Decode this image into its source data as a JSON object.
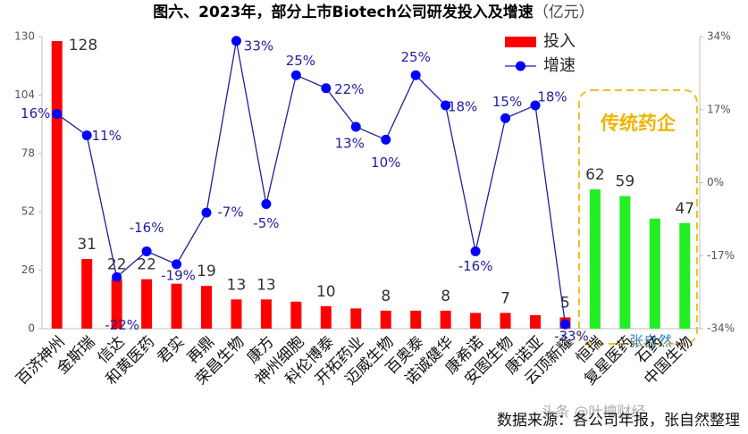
{
  "chart_data": {
    "type": "bar_line",
    "title": "图六、2023年，部分上市Biotech公司研发投入及增速",
    "subtitle": "（亿元）",
    "categories": [
      "百济神州",
      "金斯瑞",
      "信达",
      "和黄医药",
      "君实",
      "再鼎",
      "荣昌生物",
      "康方",
      "神州细胞",
      "科伦博泰",
      "开拓药业",
      "迈威生物",
      "百奥泰",
      "诺诚健华",
      "康希诺",
      "安图生物",
      "康诺亚",
      "云顶新耀",
      "恒瑞",
      "复星医药",
      "石药",
      "中国生物"
    ],
    "series": [
      {
        "name": "投入",
        "type": "bar",
        "color": "#ff0000",
        "point_colors": [
          "#ff0000",
          "#ff0000",
          "#ff0000",
          "#ff0000",
          "#ff0000",
          "#ff0000",
          "#ff0000",
          "#ff0000",
          "#ff0000",
          "#ff0000",
          "#ff0000",
          "#ff0000",
          "#ff0000",
          "#ff0000",
          "#ff0000",
          "#ff0000",
          "#ff0000",
          "#ff0000",
          "#22ee22",
          "#22ee22",
          "#22ee22",
          "#22ee22"
        ],
        "values": [
          128,
          31,
          22,
          22,
          20,
          19,
          13,
          13,
          12,
          10,
          9,
          8,
          8,
          8,
          7,
          7,
          6,
          5,
          62,
          59,
          49,
          47
        ],
        "value_labels": [
          "128",
          "31",
          "22",
          "22",
          null,
          "19",
          "13",
          "13",
          null,
          "10",
          null,
          "8",
          null,
          "8",
          null,
          "7",
          null,
          "5",
          "62",
          "59",
          null,
          "47"
        ]
      },
      {
        "name": "增速",
        "type": "line",
        "axis": "y2",
        "color": "#1f1fa0",
        "marker_color": "#0000ff",
        "values": [
          16,
          11,
          -22,
          -16,
          -19,
          -7,
          33,
          -5,
          25,
          22,
          13,
          10,
          25,
          18,
          -16,
          15,
          18,
          -33,
          null,
          null,
          null,
          null
        ],
        "value_labels": [
          "16%",
          "11%",
          "-22%",
          "-16%",
          "-19%",
          "-7%",
          "33%",
          "-5%",
          "25%",
          "22%",
          "13%",
          "10%",
          "25%",
          "18%",
          "-16%",
          "15%",
          "18%",
          "-33%",
          null,
          null,
          null,
          null
        ]
      }
    ],
    "ylim": [
      0,
      130
    ],
    "yticks": [
      0,
      26,
      52,
      78,
      104,
      130
    ],
    "y2lim": [
      -34,
      34
    ],
    "y2ticks": [
      {
        "value": -34,
        "label": "-34%"
      },
      {
        "value": -17,
        "label": "-17%"
      },
      {
        "value": 0,
        "label": "0%"
      },
      {
        "value": 17,
        "label": "17%"
      },
      {
        "value": 34,
        "label": "34%"
      }
    ],
    "legend": "top-right",
    "grid": false,
    "annotation": {
      "text": "传统药企",
      "color": "#f0b400"
    },
    "watermark": "张自然",
    "source": "数据来源：各公司年报，张自然整理",
    "credit": "头条 @叶檀财经"
  }
}
